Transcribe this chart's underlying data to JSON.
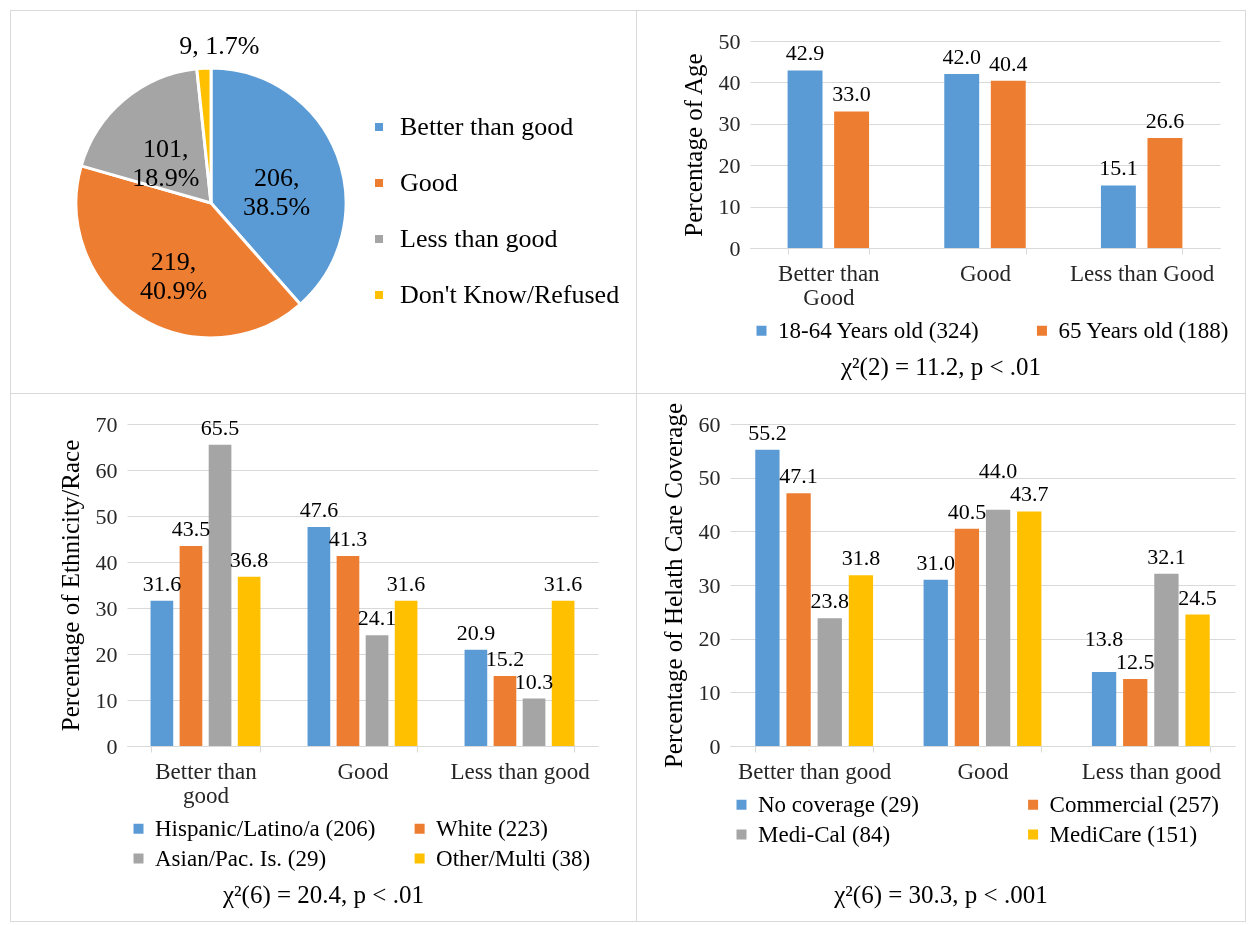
{
  "chart_data": [
    {
      "type": "pie",
      "categories": [
        "Better than good",
        "Good",
        "Less than good",
        "Don't Know/Refused"
      ],
      "values": [
        206,
        219,
        101,
        9
      ],
      "colors": [
        "#5b9bd5",
        "#ed7d31",
        "#a5a5a5",
        "#ffc000"
      ],
      "value_labels": [
        "206, 38.5%",
        "219, 40.9%",
        "101, 18.9%",
        "9, 1.7%"
      ],
      "legend": "right"
    },
    {
      "type": "bar",
      "categories": [
        "Better than Good",
        "Good",
        "Less than Good"
      ],
      "series": [
        {
          "name": "18-64 Years old (324)",
          "color": "#5b9bd5",
          "values": [
            42.9,
            42.0,
            15.1
          ],
          "value_labels": [
            "42.9",
            "42.0",
            "15.1"
          ]
        },
        {
          "name": "65 Years old (188)",
          "color": "#ed7d31",
          "values": [
            33.0,
            40.4,
            26.6
          ],
          "value_labels": [
            "33.0",
            "40.4",
            "26.6"
          ]
        }
      ],
      "ylabel": "Percentage of Age",
      "ylim": [
        0,
        50
      ],
      "yticks": [
        0,
        10,
        20,
        30,
        40,
        50
      ],
      "grid": "y",
      "legend": "bottom",
      "annotations": [
        "χ²(2) = 11.2, p < .01"
      ]
    },
    {
      "type": "bar",
      "categories": [
        "Better than good",
        "Good",
        "Less than good"
      ],
      "series": [
        {
          "name": "Hispanic/Latino/a (206)",
          "color": "#5b9bd5",
          "values": [
            31.6,
            47.6,
            20.9
          ],
          "value_labels": [
            "31.6",
            "47.6",
            "20.9"
          ]
        },
        {
          "name": "White (223)",
          "color": "#ed7d31",
          "values": [
            43.5,
            41.3,
            15.2
          ],
          "value_labels": [
            "43.5",
            "41.3",
            "15.2"
          ]
        },
        {
          "name": "Asian/Pac. Is. (29)",
          "color": "#a5a5a5",
          "values": [
            65.5,
            24.1,
            10.3
          ],
          "value_labels": [
            "65.5",
            "24.1",
            "10.3"
          ]
        },
        {
          "name": "Other/Multi (38)",
          "color": "#ffc000",
          "values": [
            36.8,
            31.6,
            31.6
          ],
          "value_labels": [
            "36.8",
            "31.6",
            "31.6"
          ]
        }
      ],
      "ylabel": "Percentage of Ethnicity/Race",
      "ylim": [
        0,
        70
      ],
      "yticks": [
        0,
        10,
        20,
        30,
        40,
        50,
        60,
        70
      ],
      "grid": "y",
      "legend": "bottom",
      "annotations": [
        "χ²(6) = 20.4, p < .01"
      ]
    },
    {
      "type": "bar",
      "categories": [
        "Better than good",
        "Good",
        "Less than good"
      ],
      "series": [
        {
          "name": "No coverage (29)",
          "color": "#5b9bd5",
          "values": [
            55.2,
            31.0,
            13.8
          ],
          "value_labels": [
            "55.2",
            "31.0",
            "13.8"
          ]
        },
        {
          "name": "Commercial (257)",
          "color": "#ed7d31",
          "values": [
            47.1,
            40.5,
            12.5
          ],
          "value_labels": [
            "47.1",
            "40.5",
            "12.5"
          ]
        },
        {
          "name": "Medi-Cal (84)",
          "color": "#a5a5a5",
          "values": [
            23.8,
            44.0,
            32.1
          ],
          "value_labels": [
            "23.8",
            "44.0",
            "32.1"
          ]
        },
        {
          "name": "MediCare (151)",
          "color": "#ffc000",
          "values": [
            31.8,
            43.7,
            24.5
          ],
          "value_labels": [
            "31.8",
            "43.7",
            "24.5"
          ]
        }
      ],
      "ylabel": "Percentage of Helath Care Coverage",
      "ylim": [
        0,
        60
      ],
      "yticks": [
        0,
        10,
        20,
        30,
        40,
        50,
        60
      ],
      "grid": "y",
      "legend": "bottom",
      "annotations": [
        "χ²(6) = 30.3, p < .001"
      ]
    }
  ]
}
